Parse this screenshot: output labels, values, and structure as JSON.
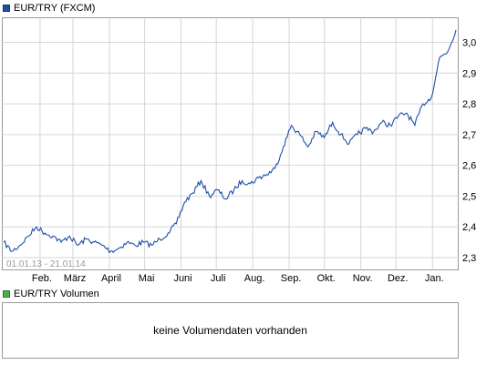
{
  "price_legend": {
    "label": "EUR/TRY (FXCM)",
    "color": "#1f4fa8"
  },
  "volume_legend": {
    "label": "EUR/TRY Volumen",
    "color": "#4daf4a"
  },
  "volume_message": "keine Volumendaten vorhanden",
  "chart_data": {
    "type": "line",
    "title": "EUR/TRY (FXCM)",
    "date_range_label": "01.01.13 - 21.01.14",
    "x_tick_labels": [
      "Feb.",
      "März",
      "April",
      "Mai",
      "Juni",
      "Juli",
      "Aug.",
      "Sep.",
      "Okt.",
      "Nov.",
      "Dez.",
      "Jan."
    ],
    "y_tick_labels": [
      "2,3",
      "2,4",
      "2,5",
      "2,6",
      "2,7",
      "2,8",
      "2,9",
      "3,0"
    ],
    "yticks": [
      2.3,
      2.4,
      2.5,
      2.6,
      2.7,
      2.8,
      2.9,
      3.0
    ],
    "ylim": [
      2.26,
      3.08
    ],
    "grid": true,
    "series": [
      {
        "name": "EUR/TRY (FXCM)",
        "color": "#1f4fa8",
        "x": [
          "2013-01-01",
          "2013-01-08",
          "2013-01-15",
          "2013-01-22",
          "2013-01-29",
          "2013-02-05",
          "2013-02-12",
          "2013-02-19",
          "2013-02-26",
          "2013-03-05",
          "2013-03-12",
          "2013-03-19",
          "2013-03-26",
          "2013-04-02",
          "2013-04-09",
          "2013-04-16",
          "2013-04-23",
          "2013-04-30",
          "2013-05-07",
          "2013-05-14",
          "2013-05-21",
          "2013-05-28",
          "2013-06-04",
          "2013-06-11",
          "2013-06-18",
          "2013-06-25",
          "2013-07-02",
          "2013-07-09",
          "2013-07-16",
          "2013-07-23",
          "2013-07-30",
          "2013-08-06",
          "2013-08-13",
          "2013-08-20",
          "2013-08-27",
          "2013-09-03",
          "2013-09-10",
          "2013-09-17",
          "2013-09-24",
          "2013-10-01",
          "2013-10-08",
          "2013-10-15",
          "2013-10-22",
          "2013-10-29",
          "2013-11-05",
          "2013-11-12",
          "2013-11-19",
          "2013-11-26",
          "2013-12-03",
          "2013-12-10",
          "2013-12-17",
          "2013-12-24",
          "2013-12-31",
          "2014-01-07",
          "2014-01-14",
          "2014-01-21"
        ],
        "values": [
          2.35,
          2.32,
          2.34,
          2.37,
          2.4,
          2.38,
          2.37,
          2.35,
          2.37,
          2.34,
          2.36,
          2.35,
          2.34,
          2.32,
          2.33,
          2.35,
          2.34,
          2.35,
          2.34,
          2.36,
          2.38,
          2.41,
          2.48,
          2.51,
          2.55,
          2.5,
          2.52,
          2.49,
          2.52,
          2.55,
          2.54,
          2.56,
          2.57,
          2.59,
          2.66,
          2.73,
          2.7,
          2.66,
          2.71,
          2.69,
          2.74,
          2.7,
          2.67,
          2.7,
          2.72,
          2.71,
          2.74,
          2.73,
          2.76,
          2.77,
          2.73,
          2.8,
          2.82,
          2.95,
          2.97,
          3.04
        ]
      }
    ]
  }
}
